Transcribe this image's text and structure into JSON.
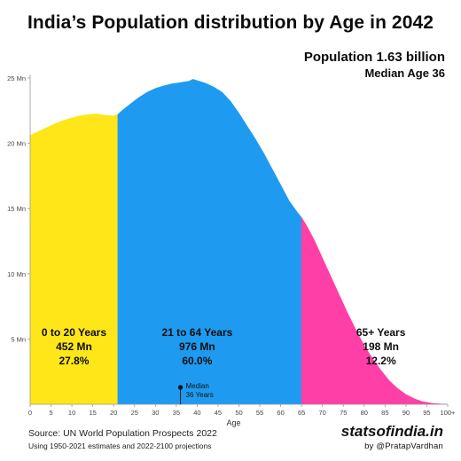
{
  "chart_data": {
    "type": "area",
    "title": "India’s Population distribution by Age in 2042",
    "population_label": "Population 1.63 billion",
    "median_label": "Median Age 36",
    "xlabel": "Age",
    "ylabel": "",
    "xlim": [
      0,
      100
    ],
    "ylim": [
      0,
      25
    ],
    "x_ticks": [
      "0",
      "5",
      "10",
      "15",
      "20",
      "25",
      "30",
      "35",
      "40",
      "45",
      "50",
      "55",
      "60",
      "65",
      "70",
      "75",
      "80",
      "85",
      "90",
      "95",
      "100+"
    ],
    "y_ticks": [
      {
        "value": 5,
        "label": "5 Mn"
      },
      {
        "value": 10,
        "label": "10 Mn"
      },
      {
        "value": 15,
        "label": "15 Mn"
      },
      {
        "value": 20,
        "label": "20 Mn"
      },
      {
        "value": 25,
        "label": "25 Mn"
      }
    ],
    "grid": false,
    "x": [
      0,
      2,
      4,
      6,
      8,
      10,
      12,
      14,
      16,
      18,
      20,
      21,
      22,
      24,
      26,
      28,
      30,
      32,
      34,
      36,
      38,
      39,
      40,
      41,
      42,
      44,
      46,
      48,
      50,
      52,
      54,
      56,
      58,
      60,
      62,
      64,
      65,
      66,
      68,
      70,
      72,
      74,
      76,
      78,
      80,
      82,
      84,
      86,
      88,
      90,
      92,
      94,
      96,
      98,
      100
    ],
    "y": [
      20.6,
      20.9,
      21.2,
      21.5,
      21.75,
      21.95,
      22.1,
      22.2,
      22.25,
      22.15,
      22.1,
      22.2,
      22.5,
      23.0,
      23.5,
      23.9,
      24.2,
      24.4,
      24.55,
      24.65,
      24.75,
      24.9,
      24.8,
      24.7,
      24.6,
      24.3,
      23.9,
      23.2,
      22.3,
      21.3,
      20.3,
      19.2,
      18.0,
      16.8,
      15.6,
      14.7,
      14.3,
      13.8,
      12.6,
      11.2,
      9.8,
      8.4,
      7.0,
      5.7,
      4.5,
      3.5,
      2.6,
      1.8,
      1.2,
      0.75,
      0.42,
      0.2,
      0.08,
      0.03,
      0.0
    ],
    "segments": [
      {
        "label": "0 to 20 Years",
        "value": "452 Mn",
        "share": "27.8%",
        "from": 0,
        "to": 21,
        "color": "#ffe619"
      },
      {
        "label": "21 to 64 Years",
        "value": "976 Mn",
        "share": "60.0%",
        "from": 21,
        "to": 65,
        "color": "#1e9bf0"
      },
      {
        "label": "65+ Years",
        "value": "198 Mn",
        "share": "12.2%",
        "from": 65,
        "to": 100,
        "color": "#ff3fa8"
      }
    ],
    "median": {
      "age": 36,
      "text_line1": "Median",
      "text_line2": "36 Years"
    }
  },
  "footer": {
    "source": "Source: UN World Population Prospects 2022",
    "note": "Using 1950-2021 estimates and 2022-2100 projections",
    "site": "statsofindia.in",
    "handle": "by @PratapVardhan"
  }
}
